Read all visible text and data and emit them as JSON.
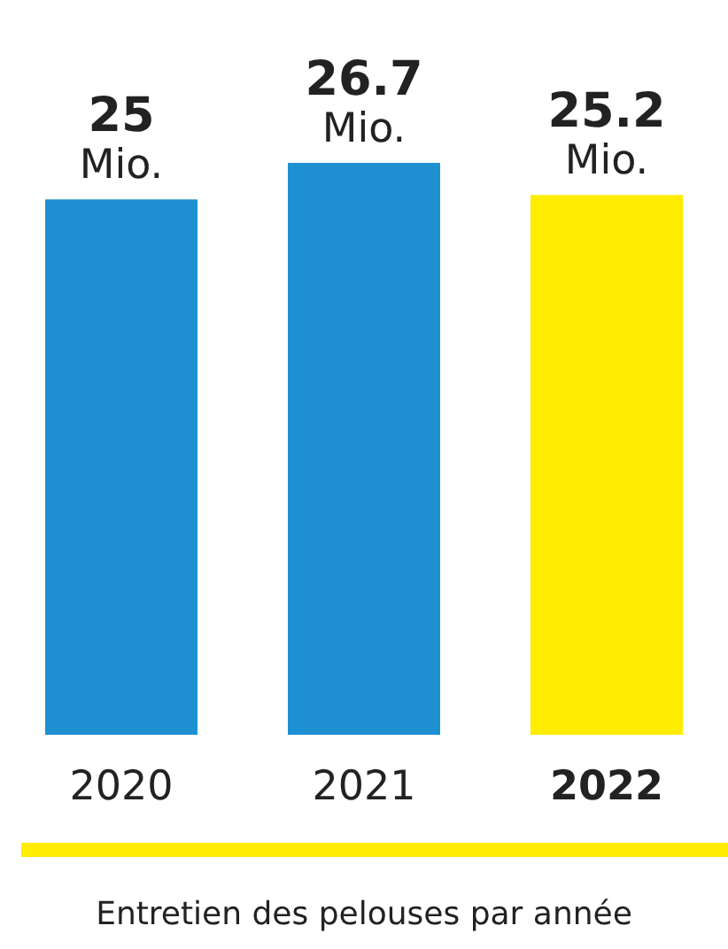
{
  "chart_data": {
    "type": "bar",
    "categories": [
      "2020",
      "2021",
      "2022"
    ],
    "values": [
      25,
      26.7,
      25.2
    ],
    "colors": [
      "#1e90d2",
      "#1e90d2",
      "#ffec00"
    ],
    "value_labels": [
      "25 Mio.",
      "26.7 Mio.",
      "25.2 Mio."
    ],
    "annotations": [
      "Entretien des pelouses par année"
    ]
  }
}
